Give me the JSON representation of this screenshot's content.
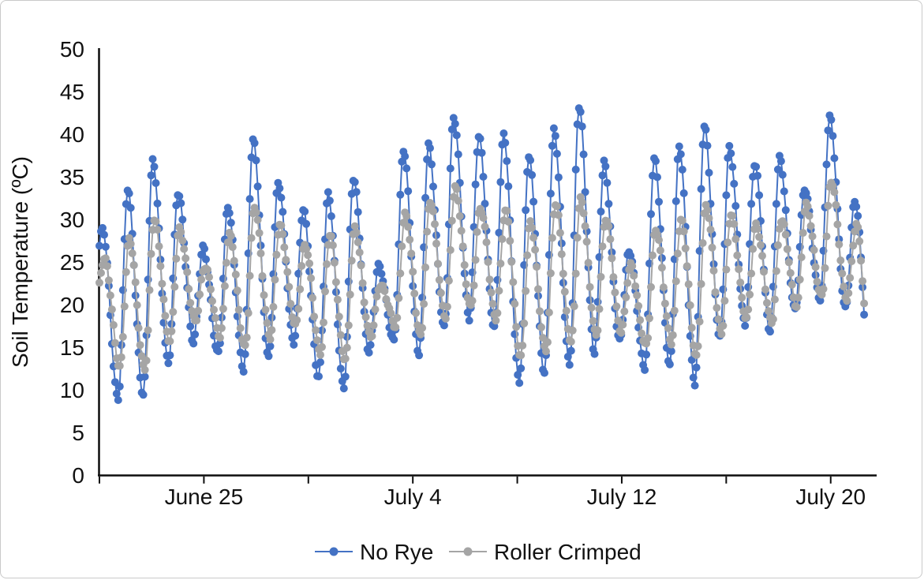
{
  "chart": {
    "y_axis": {
      "title": "Soil Temperature (ºC)",
      "min": 0,
      "max": 50,
      "step": 5
    },
    "x_axis": {
      "major_ticks": [
        {
          "hour": 100,
          "label": "June 25"
        },
        {
          "hour": 300,
          "label": "July 4"
        },
        {
          "hour": 500,
          "label": "July 12"
        },
        {
          "hour": 700,
          "label": "July 20"
        }
      ],
      "minor_tick_hours": [
        0,
        200,
        400,
        600
      ]
    },
    "legend": [
      {
        "label": "No Rye",
        "color": "#4472C4"
      },
      {
        "label": "Roller Crimped",
        "color": "#A5A5A5"
      }
    ]
  },
  "chart_data": {
    "type": "line",
    "title": "",
    "xlabel": "",
    "ylabel": "Soil Temperature (ºC)",
    "ylim": [
      0,
      50
    ],
    "grid": false,
    "legend_position": "bottom-center",
    "x_start": "June 21 12:00",
    "x_end": "July 22 00:00",
    "sampling": "sub-daily soil temperature readings; rendered every 1.5 h",
    "axis_span_hours": 744,
    "sample_step_hours": 1.5,
    "data_end_hour": 732,
    "diurnal_note": "values generated per day between morning minimum and afternoon peak",
    "series": [
      {
        "name": "No Rye",
        "color": "#4472C4",
        "min_hour": 6,
        "peak_hour": 15,
        "end_min": 12,
        "noise_phase": 0,
        "daily": [
          {
            "date": "June 21",
            "min": 21.5,
            "max": 28.7
          },
          {
            "date": "June 22",
            "min": 9.0,
            "max": 33.5
          },
          {
            "date": "June 23",
            "min": 9.2,
            "max": 37.0
          },
          {
            "date": "June 24",
            "min": 13.0,
            "max": 33.2
          },
          {
            "date": "June 25",
            "min": 15.8,
            "max": 26.5
          },
          {
            "date": "June 26",
            "min": 14.3,
            "max": 31.5
          },
          {
            "date": "June 27",
            "min": 12.2,
            "max": 39.5
          },
          {
            "date": "June 28",
            "min": 13.7,
            "max": 34.3
          },
          {
            "date": "June 29",
            "min": 15.7,
            "max": 31.0
          },
          {
            "date": "June 30",
            "min": 11.4,
            "max": 33.0
          },
          {
            "date": "July 1",
            "min": 10.0,
            "max": 35.0
          },
          {
            "date": "July 2",
            "min": 14.5,
            "max": 24.5
          },
          {
            "date": "July 3",
            "min": 15.9,
            "max": 38.0
          },
          {
            "date": "July 4",
            "min": 14.2,
            "max": 38.8
          },
          {
            "date": "July 5",
            "min": 17.1,
            "max": 42.2
          },
          {
            "date": "July 6",
            "min": 18.5,
            "max": 39.6
          },
          {
            "date": "July 7",
            "min": 17.4,
            "max": 39.8
          },
          {
            "date": "July 8",
            "min": 10.8,
            "max": 37.6
          },
          {
            "date": "July 9",
            "min": 11.8,
            "max": 40.6
          },
          {
            "date": "July 10",
            "min": 13.0,
            "max": 43.2
          },
          {
            "date": "July 11",
            "min": 14.5,
            "max": 36.5
          },
          {
            "date": "July 12",
            "min": 15.6,
            "max": 26.5
          },
          {
            "date": "July 13",
            "min": 12.5,
            "max": 37.2
          },
          {
            "date": "July 14",
            "min": 12.9,
            "max": 38.4
          },
          {
            "date": "July 15",
            "min": 10.8,
            "max": 40.9
          },
          {
            "date": "July 16",
            "min": 16.0,
            "max": 38.6
          },
          {
            "date": "July 17",
            "min": 17.5,
            "max": 36.6
          },
          {
            "date": "July 18",
            "min": 17.1,
            "max": 37.0
          },
          {
            "date": "July 19",
            "min": 19.4,
            "max": 33.6
          },
          {
            "date": "July 20",
            "min": 20.5,
            "max": 42.2
          },
          {
            "date": "July 21",
            "min": 19.5,
            "max": 32.2
          }
        ]
      },
      {
        "name": "Roller Crimped",
        "color": "#A5A5A5",
        "min_hour": 7.5,
        "peak_hour": 16.5,
        "end_min": 10,
        "noise_phase": 2.1,
        "daily": [
          {
            "date": "June 21",
            "min": 19.5,
            "max": 25.5
          },
          {
            "date": "June 22",
            "min": 12.8,
            "max": 27.5
          },
          {
            "date": "June 23",
            "min": 12.5,
            "max": 30.0
          },
          {
            "date": "June 24",
            "min": 15.5,
            "max": 29.0
          },
          {
            "date": "June 25",
            "min": 18.0,
            "max": 24.5
          },
          {
            "date": "June 26",
            "min": 16.5,
            "max": 28.0
          },
          {
            "date": "June 27",
            "min": 15.0,
            "max": 31.5
          },
          {
            "date": "June 28",
            "min": 16.0,
            "max": 29.5
          },
          {
            "date": "June 29",
            "min": 17.5,
            "max": 27.0
          },
          {
            "date": "June 30",
            "min": 14.5,
            "max": 28.0
          },
          {
            "date": "July 1",
            "min": 13.5,
            "max": 29.0
          },
          {
            "date": "July 2",
            "min": 16.0,
            "max": 22.5
          },
          {
            "date": "July 3",
            "min": 17.5,
            "max": 30.5
          },
          {
            "date": "July 4",
            "min": 16.5,
            "max": 32.0
          },
          {
            "date": "July 5",
            "min": 18.5,
            "max": 33.8
          },
          {
            "date": "July 6",
            "min": 19.5,
            "max": 31.5
          },
          {
            "date": "July 7",
            "min": 18.5,
            "max": 31.0
          },
          {
            "date": "July 8",
            "min": 14.0,
            "max": 29.5
          },
          {
            "date": "July 9",
            "min": 14.5,
            "max": 32.0
          },
          {
            "date": "July 10",
            "min": 15.5,
            "max": 32.5
          },
          {
            "date": "July 11",
            "min": 16.5,
            "max": 30.0
          },
          {
            "date": "July 12",
            "min": 17.0,
            "max": 24.5
          },
          {
            "date": "July 13",
            "min": 15.0,
            "max": 29.0
          },
          {
            "date": "July 14",
            "min": 15.5,
            "max": 30.0
          },
          {
            "date": "July 15",
            "min": 14.0,
            "max": 31.5
          },
          {
            "date": "July 16",
            "min": 16.8,
            "max": 30.5
          },
          {
            "date": "July 17",
            "min": 18.2,
            "max": 29.5
          },
          {
            "date": "July 18",
            "min": 17.8,
            "max": 30.0
          },
          {
            "date": "July 19",
            "min": 20.0,
            "max": 31.5
          },
          {
            "date": "July 20",
            "min": 21.0,
            "max": 34.5
          },
          {
            "date": "July 21",
            "min": 20.5,
            "max": 29.5
          }
        ]
      }
    ]
  }
}
